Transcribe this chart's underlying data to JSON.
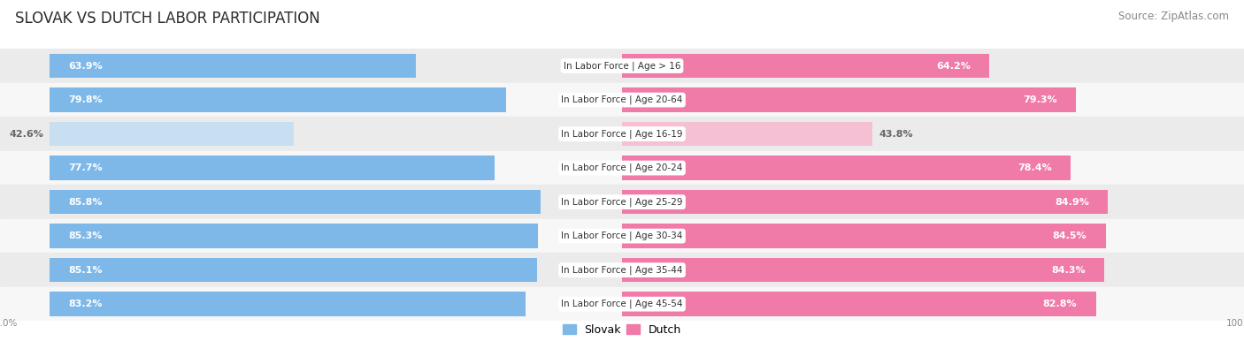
{
  "title": "SLOVAK VS DUTCH LABOR PARTICIPATION",
  "source": "Source: ZipAtlas.com",
  "categories": [
    "In Labor Force | Age > 16",
    "In Labor Force | Age 20-64",
    "In Labor Force | Age 16-19",
    "In Labor Force | Age 20-24",
    "In Labor Force | Age 25-29",
    "In Labor Force | Age 30-34",
    "In Labor Force | Age 35-44",
    "In Labor Force | Age 45-54"
  ],
  "slovak_values": [
    63.9,
    79.8,
    42.6,
    77.7,
    85.8,
    85.3,
    85.1,
    83.2
  ],
  "dutch_values": [
    64.2,
    79.3,
    43.8,
    78.4,
    84.9,
    84.5,
    84.3,
    82.8
  ],
  "slovak_color": "#7db8e8",
  "dutch_color": "#f07aa8",
  "slovak_color_light": "#c8dff2",
  "dutch_color_light": "#f5c0d4",
  "row_bg_odd": "#ebebeb",
  "row_bg_even": "#f7f7f7",
  "label_color_white": "#ffffff",
  "label_color_dark": "#666666",
  "title_fontsize": 12,
  "source_fontsize": 8.5,
  "bar_label_fontsize": 8,
  "cat_label_fontsize": 7.5,
  "legend_fontsize": 9,
  "axis_label_fontsize": 7.5,
  "figsize": [
    14.06,
    3.95
  ],
  "dpi": 100
}
